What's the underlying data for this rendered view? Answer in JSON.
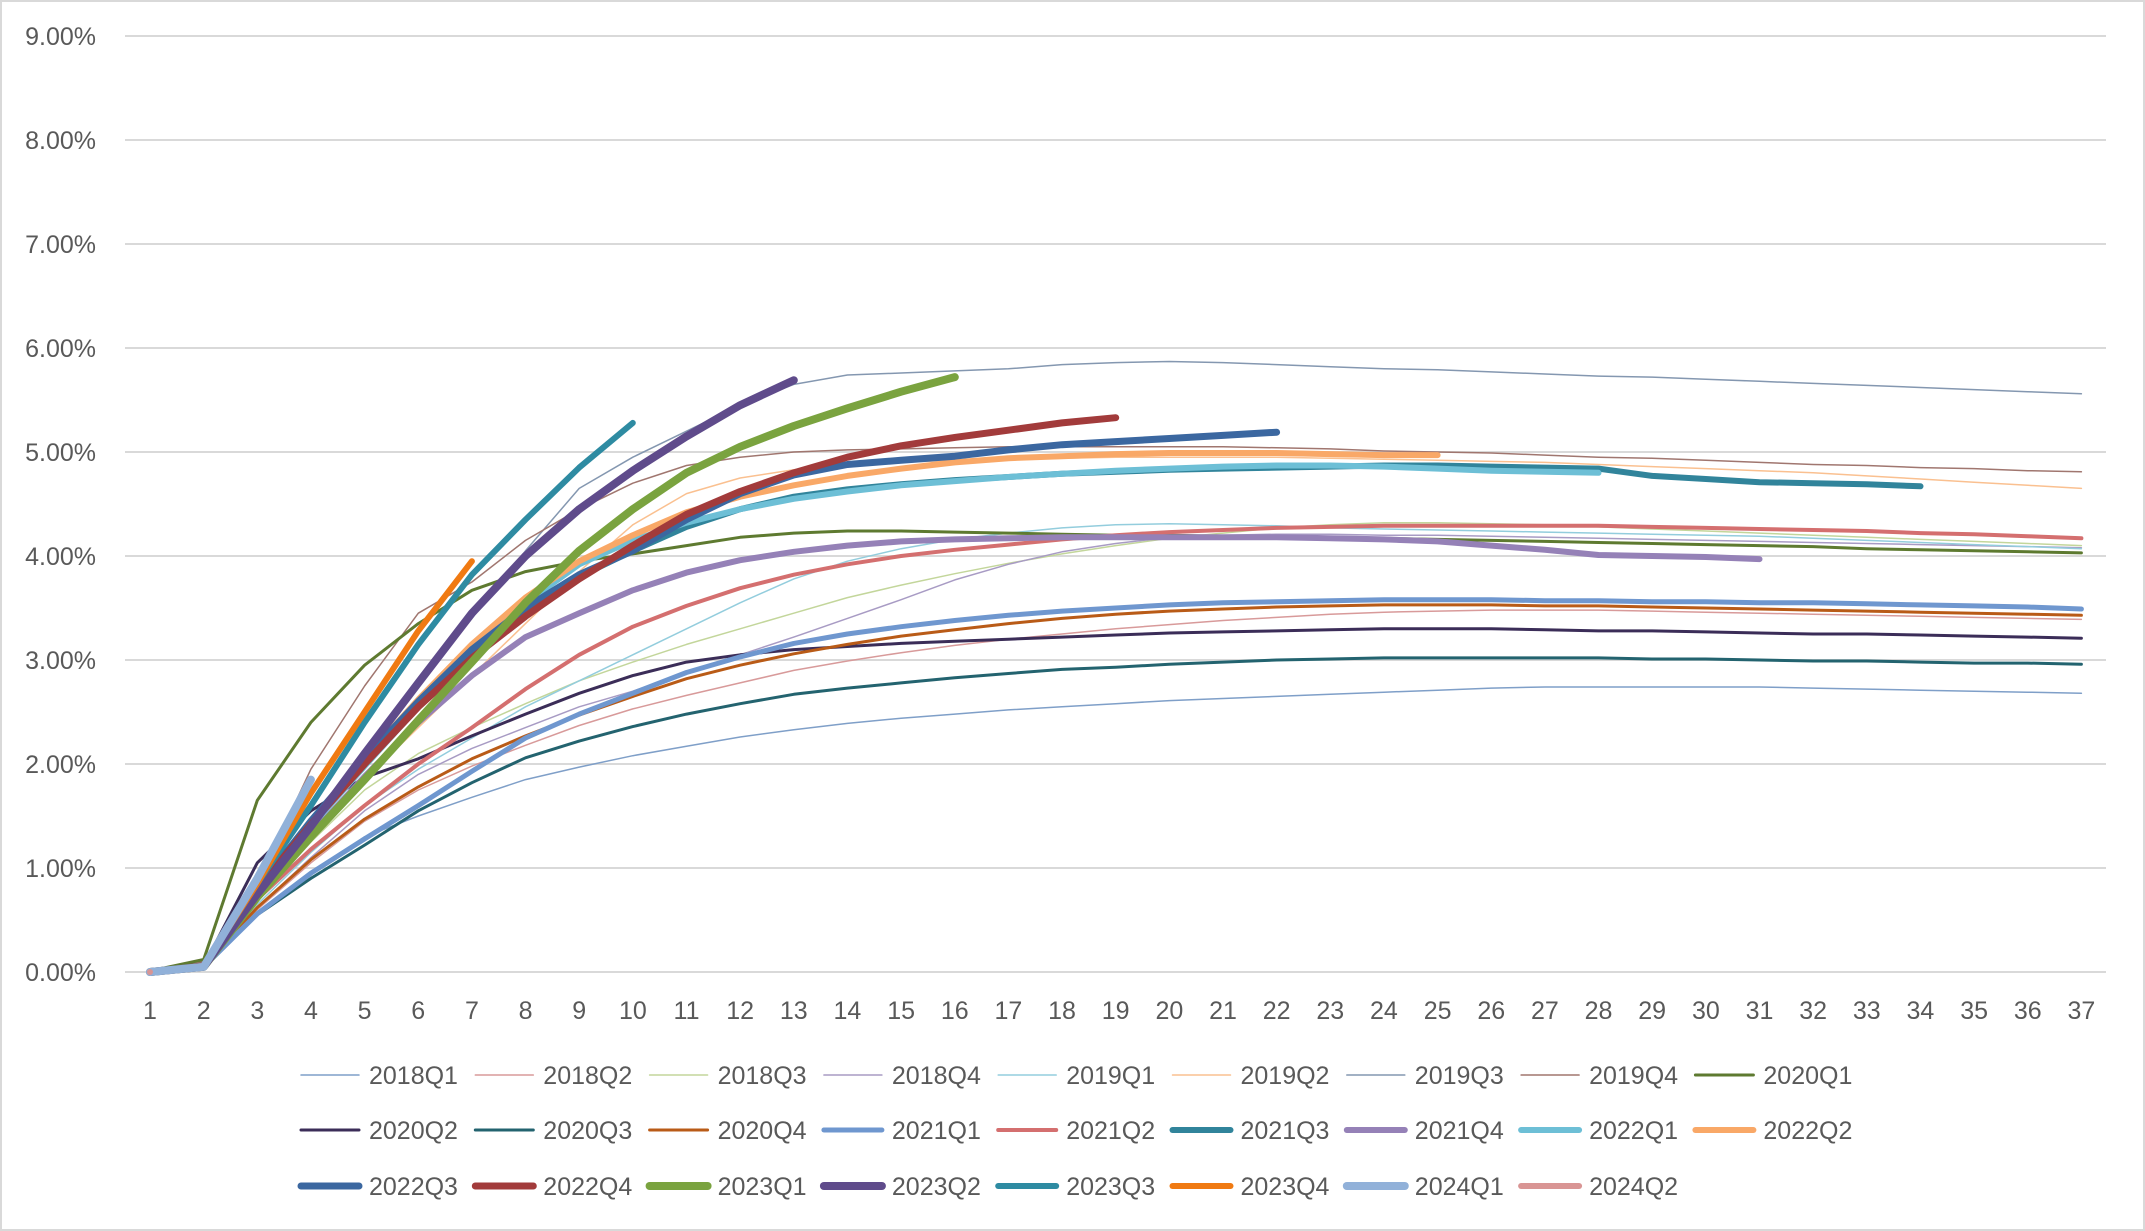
{
  "chart_data": {
    "type": "line",
    "title": "",
    "xlabel": "",
    "ylabel": "",
    "ylim": [
      0,
      9
    ],
    "y_ticks": [
      "0.00%",
      "1.00%",
      "2.00%",
      "3.00%",
      "4.00%",
      "5.00%",
      "6.00%",
      "7.00%",
      "8.00%",
      "9.00%"
    ],
    "x": [
      1,
      2,
      3,
      4,
      5,
      6,
      7,
      8,
      9,
      10,
      11,
      12,
      13,
      14,
      15,
      16,
      17,
      18,
      19,
      20,
      21,
      22,
      23,
      24,
      25,
      26,
      27,
      28,
      29,
      30,
      31,
      32,
      33,
      34,
      35,
      36,
      37
    ],
    "grid": true,
    "legend_position": "bottom",
    "series": [
      {
        "name": "2018Q1",
        "color": "#7f9fc8",
        "width": 1.5,
        "values": [
          0,
          0.05,
          0.55,
          0.95,
          1.3,
          1.5,
          1.68,
          1.85,
          1.97,
          2.08,
          2.17,
          2.26,
          2.33,
          2.39,
          2.44,
          2.48,
          2.52,
          2.55,
          2.58,
          2.61,
          2.63,
          2.65,
          2.67,
          2.69,
          2.71,
          2.73,
          2.74,
          2.74,
          2.74,
          2.74,
          2.74,
          2.73,
          2.72,
          2.71,
          2.7,
          2.69,
          2.68
        ]
      },
      {
        "name": "2018Q2",
        "color": "#d89a9a",
        "width": 1.5,
        "values": [
          0,
          0.06,
          0.6,
          1.05,
          1.45,
          1.75,
          1.98,
          2.18,
          2.37,
          2.53,
          2.66,
          2.78,
          2.9,
          2.99,
          3.07,
          3.14,
          3.2,
          3.25,
          3.3,
          3.34,
          3.38,
          3.41,
          3.44,
          3.46,
          3.47,
          3.48,
          3.48,
          3.48,
          3.47,
          3.46,
          3.45,
          3.44,
          3.43,
          3.42,
          3.41,
          3.4,
          3.39
        ]
      },
      {
        "name": "2018Q3",
        "color": "#c3d69b",
        "width": 1.5,
        "values": [
          0,
          0.07,
          0.7,
          1.25,
          1.75,
          2.1,
          2.35,
          2.58,
          2.8,
          2.98,
          3.15,
          3.3,
          3.45,
          3.6,
          3.72,
          3.83,
          3.93,
          4.02,
          4.1,
          4.17,
          4.22,
          4.27,
          4.3,
          4.32,
          4.32,
          4.31,
          4.3,
          4.28,
          4.26,
          4.24,
          4.22,
          4.2,
          4.18,
          4.16,
          4.14,
          4.12,
          4.1
        ]
      },
      {
        "name": "2018Q4",
        "color": "#a89bc4",
        "width": 1.5,
        "values": [
          0,
          0.06,
          0.62,
          1.1,
          1.55,
          1.9,
          2.15,
          2.35,
          2.55,
          2.7,
          2.88,
          3.05,
          3.22,
          3.4,
          3.58,
          3.77,
          3.92,
          4.04,
          4.12,
          4.18,
          4.2,
          4.21,
          4.21,
          4.2,
          4.2,
          4.19,
          4.18,
          4.17,
          4.16,
          4.15,
          4.14,
          4.13,
          4.12,
          4.11,
          4.1,
          4.09,
          4.08
        ]
      },
      {
        "name": "2019Q1",
        "color": "#93cddd",
        "width": 1.5,
        "values": [
          0,
          0.06,
          0.65,
          1.15,
          1.6,
          1.95,
          2.25,
          2.55,
          2.8,
          3.05,
          3.3,
          3.55,
          3.78,
          3.95,
          4.07,
          4.16,
          4.22,
          4.27,
          4.3,
          4.31,
          4.3,
          4.29,
          4.27,
          4.26,
          4.25,
          4.24,
          4.23,
          4.22,
          4.21,
          4.2,
          4.19,
          4.17,
          4.15,
          4.13,
          4.11,
          4.09,
          4.07
        ]
      },
      {
        "name": "2019Q2",
        "color": "#fac090",
        "width": 1.5,
        "values": [
          0,
          0.06,
          0.7,
          1.3,
          1.85,
          2.35,
          2.85,
          3.35,
          3.85,
          4.3,
          4.6,
          4.75,
          4.83,
          4.88,
          4.9,
          4.92,
          4.93,
          4.94,
          4.95,
          4.95,
          4.95,
          4.95,
          4.94,
          4.93,
          4.92,
          4.91,
          4.9,
          4.88,
          4.86,
          4.84,
          4.82,
          4.8,
          4.77,
          4.74,
          4.71,
          4.68,
          4.65
        ]
      },
      {
        "name": "2019Q3",
        "color": "#8497b0",
        "width": 1.5,
        "values": [
          0,
          0.07,
          0.75,
          1.45,
          2.1,
          2.75,
          3.4,
          4.05,
          4.65,
          4.95,
          5.2,
          5.45,
          5.65,
          5.74,
          5.76,
          5.78,
          5.8,
          5.84,
          5.86,
          5.87,
          5.86,
          5.84,
          5.82,
          5.8,
          5.79,
          5.77,
          5.75,
          5.73,
          5.72,
          5.7,
          5.68,
          5.66,
          5.64,
          5.62,
          5.6,
          5.58,
          5.56
        ]
      },
      {
        "name": "2019Q4",
        "color": "#a0766f",
        "width": 1.5,
        "values": [
          0.02,
          0.1,
          0.85,
          1.95,
          2.75,
          3.45,
          3.75,
          4.15,
          4.45,
          4.7,
          4.87,
          4.95,
          5.0,
          5.02,
          5.03,
          5.04,
          5.05,
          5.05,
          5.05,
          5.05,
          5.05,
          5.04,
          5.03,
          5.01,
          5.0,
          4.99,
          4.97,
          4.95,
          4.94,
          4.92,
          4.9,
          4.88,
          4.87,
          4.85,
          4.84,
          4.82,
          4.81
        ]
      },
      {
        "name": "2020Q1",
        "color": "#5e7a30",
        "width": 3,
        "values": [
          0.01,
          0.12,
          1.65,
          2.4,
          2.95,
          3.35,
          3.67,
          3.85,
          3.95,
          4.02,
          4.1,
          4.18,
          4.22,
          4.24,
          4.24,
          4.23,
          4.22,
          4.21,
          4.2,
          4.2,
          4.19,
          4.19,
          4.18,
          4.17,
          4.16,
          4.15,
          4.14,
          4.13,
          4.12,
          4.11,
          4.1,
          4.09,
          4.07,
          4.06,
          4.05,
          4.04,
          4.03
        ]
      },
      {
        "name": "2020Q2",
        "color": "#3b2d58",
        "width": 3,
        "values": [
          0,
          0.06,
          1.05,
          1.55,
          1.87,
          2.05,
          2.27,
          2.48,
          2.68,
          2.85,
          2.98,
          3.05,
          3.1,
          3.13,
          3.16,
          3.18,
          3.2,
          3.22,
          3.24,
          3.26,
          3.27,
          3.28,
          3.29,
          3.3,
          3.3,
          3.3,
          3.29,
          3.28,
          3.28,
          3.27,
          3.26,
          3.25,
          3.25,
          3.24,
          3.23,
          3.22,
          3.21
        ]
      },
      {
        "name": "2020Q3",
        "color": "#23636f",
        "width": 3,
        "values": [
          0,
          0.04,
          0.55,
          0.9,
          1.22,
          1.55,
          1.82,
          2.06,
          2.22,
          2.36,
          2.48,
          2.58,
          2.67,
          2.73,
          2.78,
          2.83,
          2.87,
          2.91,
          2.93,
          2.96,
          2.98,
          3.0,
          3.01,
          3.02,
          3.02,
          3.02,
          3.02,
          3.02,
          3.01,
          3.01,
          3.0,
          2.99,
          2.99,
          2.98,
          2.97,
          2.97,
          2.96
        ]
      },
      {
        "name": "2020Q4",
        "color": "#b95b17",
        "width": 3,
        "values": [
          0,
          0.05,
          0.62,
          1.08,
          1.47,
          1.78,
          2.05,
          2.27,
          2.47,
          2.65,
          2.82,
          2.95,
          3.06,
          3.15,
          3.23,
          3.29,
          3.35,
          3.4,
          3.44,
          3.47,
          3.49,
          3.51,
          3.52,
          3.53,
          3.53,
          3.53,
          3.52,
          3.52,
          3.51,
          3.5,
          3.49,
          3.48,
          3.47,
          3.46,
          3.45,
          3.44,
          3.43
        ]
      },
      {
        "name": "2021Q1",
        "color": "#6f97cf",
        "width": 5,
        "values": [
          0,
          0.05,
          0.56,
          0.95,
          1.28,
          1.6,
          1.93,
          2.25,
          2.48,
          2.68,
          2.88,
          3.03,
          3.16,
          3.25,
          3.32,
          3.38,
          3.43,
          3.47,
          3.5,
          3.53,
          3.55,
          3.56,
          3.57,
          3.58,
          3.58,
          3.58,
          3.57,
          3.57,
          3.56,
          3.56,
          3.55,
          3.55,
          3.54,
          3.53,
          3.52,
          3.51,
          3.49
        ]
      },
      {
        "name": "2021Q2",
        "color": "#d46f6f",
        "width": 4,
        "values": [
          0,
          0.06,
          0.7,
          1.18,
          1.6,
          2.0,
          2.35,
          2.72,
          3.05,
          3.32,
          3.52,
          3.69,
          3.82,
          3.92,
          4.0,
          4.06,
          4.11,
          4.16,
          4.2,
          4.23,
          4.25,
          4.27,
          4.28,
          4.29,
          4.29,
          4.29,
          4.29,
          4.29,
          4.28,
          4.27,
          4.26,
          4.25,
          4.24,
          4.22,
          4.21,
          4.19,
          4.17
        ]
      },
      {
        "name": "2021Q3",
        "color": "#31849b",
        "width": 6,
        "values": [
          0,
          0.06,
          0.8,
          1.45,
          2.05,
          2.6,
          3.1,
          3.5,
          3.8,
          4.05,
          4.28,
          4.45,
          4.57,
          4.64,
          4.69,
          4.73,
          4.76,
          4.79,
          4.81,
          4.83,
          4.84,
          4.85,
          4.86,
          4.87,
          4.87,
          4.86,
          4.85,
          4.84,
          4.77,
          4.74,
          4.71,
          4.7,
          4.69,
          4.67,
          null,
          null,
          null
        ]
      },
      {
        "name": "2021Q4",
        "color": "#9581b7",
        "width": 6,
        "values": [
          0,
          0.06,
          0.75,
          1.32,
          1.88,
          2.4,
          2.85,
          3.22,
          3.45,
          3.67,
          3.84,
          3.96,
          4.04,
          4.1,
          4.14,
          4.16,
          4.17,
          4.18,
          4.18,
          4.18,
          4.18,
          4.18,
          4.17,
          4.16,
          4.14,
          4.1,
          4.06,
          4.01,
          4.0,
          3.99,
          3.97,
          null,
          null,
          null,
          null,
          null,
          null
        ]
      },
      {
        "name": "2022Q1",
        "color": "#6dbfd6",
        "width": 6,
        "values": [
          0,
          0.06,
          0.78,
          1.4,
          1.98,
          2.55,
          3.08,
          3.55,
          3.92,
          4.15,
          4.32,
          4.45,
          4.55,
          4.62,
          4.68,
          4.72,
          4.76,
          4.79,
          4.82,
          4.84,
          4.86,
          4.87,
          4.87,
          4.86,
          4.84,
          4.82,
          4.81,
          4.8,
          null,
          null,
          null,
          null,
          null,
          null,
          null,
          null,
          null
        ]
      },
      {
        "name": "2022Q2",
        "color": "#f9a867",
        "width": 6,
        "values": [
          0,
          0.06,
          0.8,
          1.45,
          2.05,
          2.62,
          3.15,
          3.6,
          3.95,
          4.2,
          4.42,
          4.57,
          4.68,
          4.77,
          4.84,
          4.9,
          4.94,
          4.96,
          4.98,
          4.99,
          4.99,
          4.99,
          4.98,
          4.97,
          4.97,
          null,
          null,
          null,
          null,
          null,
          null,
          null,
          null,
          null,
          null,
          null,
          null
        ]
      },
      {
        "name": "2022Q3",
        "color": "#3b67a0",
        "width": 7,
        "values": [
          0,
          0.06,
          0.8,
          1.45,
          2.05,
          2.6,
          3.1,
          3.5,
          3.82,
          4.05,
          4.35,
          4.6,
          4.78,
          4.88,
          4.92,
          4.96,
          5.02,
          5.07,
          5.1,
          5.13,
          5.16,
          5.19,
          null,
          null,
          null,
          null,
          null,
          null,
          null,
          null,
          null,
          null,
          null,
          null,
          null,
          null,
          null
        ]
      },
      {
        "name": "2022Q4",
        "color": "#a23b3b",
        "width": 7,
        "values": [
          0,
          0.06,
          0.8,
          1.42,
          2.0,
          2.55,
          3.02,
          3.42,
          3.78,
          4.1,
          4.4,
          4.62,
          4.8,
          4.95,
          5.06,
          5.14,
          5.21,
          5.28,
          5.33,
          null,
          null,
          null,
          null,
          null,
          null,
          null,
          null,
          null,
          null,
          null,
          null,
          null,
          null,
          null,
          null,
          null,
          null
        ]
      },
      {
        "name": "2023Q1",
        "color": "#7aa33f",
        "width": 8,
        "values": [
          0,
          0.05,
          0.72,
          1.3,
          1.85,
          2.42,
          2.98,
          3.55,
          4.05,
          4.45,
          4.8,
          5.05,
          5.25,
          5.42,
          5.58,
          5.72,
          null,
          null,
          null,
          null,
          null,
          null,
          null,
          null,
          null,
          null,
          null,
          null,
          null,
          null,
          null,
          null,
          null,
          null,
          null,
          null,
          null
        ]
      },
      {
        "name": "2023Q2",
        "color": "#5f4b8b",
        "width": 8,
        "values": [
          0,
          0.05,
          0.75,
          1.4,
          2.1,
          2.78,
          3.45,
          4.0,
          4.45,
          4.82,
          5.15,
          5.45,
          5.69,
          null,
          null,
          null,
          null,
          null,
          null,
          null,
          null,
          null,
          null,
          null,
          null,
          null,
          null,
          null,
          null,
          null,
          null,
          null,
          null,
          null,
          null,
          null,
          null
        ]
      },
      {
        "name": "2023Q3",
        "color": "#2e8ba2",
        "width": 6,
        "values": [
          0,
          0.06,
          0.85,
          1.6,
          2.4,
          3.15,
          3.82,
          4.35,
          4.85,
          5.28,
          null,
          null,
          null,
          null,
          null,
          null,
          null,
          null,
          null,
          null,
          null,
          null,
          null,
          null,
          null,
          null,
          null,
          null,
          null,
          null,
          null,
          null,
          null,
          null,
          null,
          null,
          null
        ]
      },
      {
        "name": "2023Q4",
        "color": "#f07a12",
        "width": 6,
        "values": [
          0,
          0.06,
          0.85,
          1.72,
          2.5,
          3.28,
          3.95,
          null,
          null,
          null,
          null,
          null,
          null,
          null,
          null,
          null,
          null,
          null,
          null,
          null,
          null,
          null,
          null,
          null,
          null,
          null,
          null,
          null,
          null,
          null,
          null,
          null,
          null,
          null,
          null,
          null,
          null
        ]
      },
      {
        "name": "2024Q1",
        "color": "#91b1d9",
        "width": 8,
        "values": [
          0,
          0.05,
          0.9,
          1.85,
          null,
          null,
          null,
          null,
          null,
          null,
          null,
          null,
          null,
          null,
          null,
          null,
          null,
          null,
          null,
          null,
          null,
          null,
          null,
          null,
          null,
          null,
          null,
          null,
          null,
          null,
          null,
          null,
          null,
          null,
          null,
          null,
          null
        ]
      },
      {
        "name": "2024Q2",
        "color": "#d99594",
        "width": 6,
        "values": [
          0,
          null,
          null,
          null,
          null,
          null,
          null,
          null,
          null,
          null,
          null,
          null,
          null,
          null,
          null,
          null,
          null,
          null,
          null,
          null,
          null,
          null,
          null,
          null,
          null,
          null,
          null,
          null,
          null,
          null,
          null,
          null,
          null,
          null,
          null,
          null,
          null
        ]
      }
    ]
  },
  "legend": {
    "rows": [
      [
        "2018Q1",
        "2018Q2",
        "2018Q3",
        "2018Q4",
        "2019Q1",
        "2019Q2",
        "2019Q3",
        "2019Q4",
        "2020Q1"
      ],
      [
        "2020Q2",
        "2020Q3",
        "2020Q4",
        "2021Q1",
        "2021Q2",
        "2021Q3",
        "2021Q4",
        "2022Q1",
        "2022Q2"
      ],
      [
        "2022Q3",
        "2022Q4",
        "2023Q1",
        "2023Q2",
        "2023Q3",
        "2023Q4",
        "2024Q1",
        "2024Q2"
      ]
    ]
  }
}
